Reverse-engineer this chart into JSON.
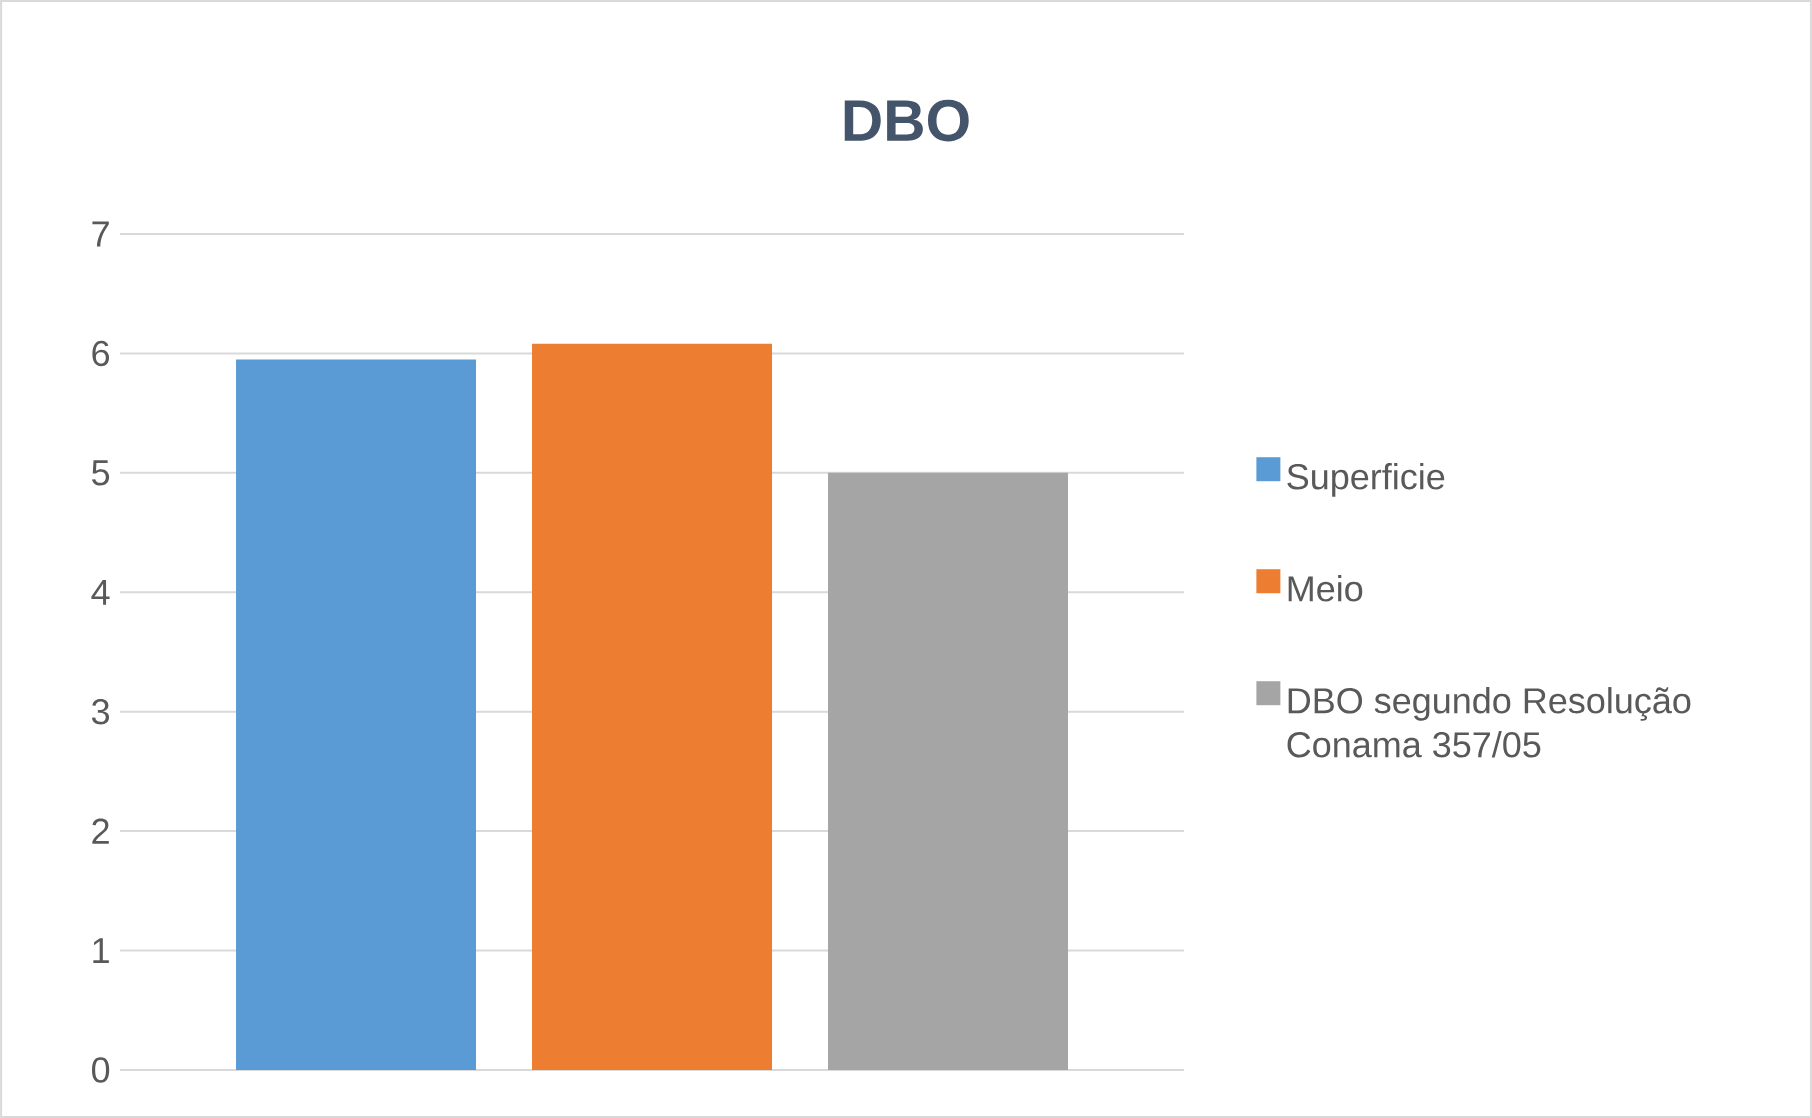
{
  "chart_data": {
    "type": "bar",
    "title": "DBO",
    "categories": [
      null
    ],
    "series": [
      {
        "name": "Superficie",
        "color": "#5b9bd5",
        "values": [
          5.95
        ]
      },
      {
        "name": "Meio",
        "color": "#ed7d31",
        "values": [
          6.08
        ]
      },
      {
        "name": "DBO segundo Resolução Conama 357/05",
        "color": "#a5a5a5",
        "values": [
          5.0
        ]
      }
    ],
    "ylim": [
      0,
      7
    ],
    "yticks": [
      0,
      1,
      2,
      3,
      4,
      5,
      6,
      7
    ],
    "grid": "y",
    "legend": "right"
  }
}
